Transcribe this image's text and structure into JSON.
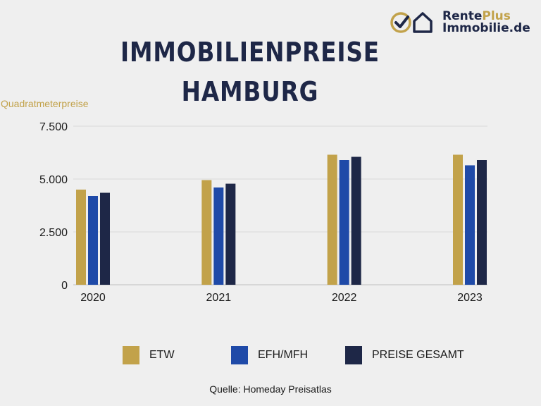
{
  "logo": {
    "line1_a": "Rente",
    "line1_b": "Plus",
    "line2": "Immobilie.de",
    "icon": "check-house-icon"
  },
  "colors": {
    "etw": "#c2a24a",
    "efh": "#1f4aa8",
    "gesamt": "#1e2747",
    "grid": "#d9d9d9"
  },
  "source": "Quelle: Homeday Preisatlas",
  "chart_data": {
    "type": "bar",
    "title_lines": [
      "IMMOBILIENPREISE",
      "HAMBURG"
    ],
    "ylabel": "Quadratmeterpreise",
    "xlabel": "",
    "categories": [
      "2020",
      "2021",
      "2022",
      "2023"
    ],
    "ylim": [
      0,
      7500
    ],
    "yticks": [
      0,
      2500,
      5000,
      7500
    ],
    "ytick_labels": [
      "0",
      "2.500",
      "5.000",
      "7.500"
    ],
    "grid": true,
    "legend_position": "bottom",
    "series": [
      {
        "name": "ETW",
        "color": "#c2a24a",
        "values": [
          4500,
          4950,
          6150,
          6150
        ]
      },
      {
        "name": "EFH/MFH",
        "color": "#1f4aa8",
        "values": [
          4200,
          4600,
          5900,
          5650
        ]
      },
      {
        "name": "PREISE GESAMT",
        "color": "#1e2747",
        "values": [
          4350,
          4780,
          6050,
          5900
        ]
      }
    ]
  }
}
